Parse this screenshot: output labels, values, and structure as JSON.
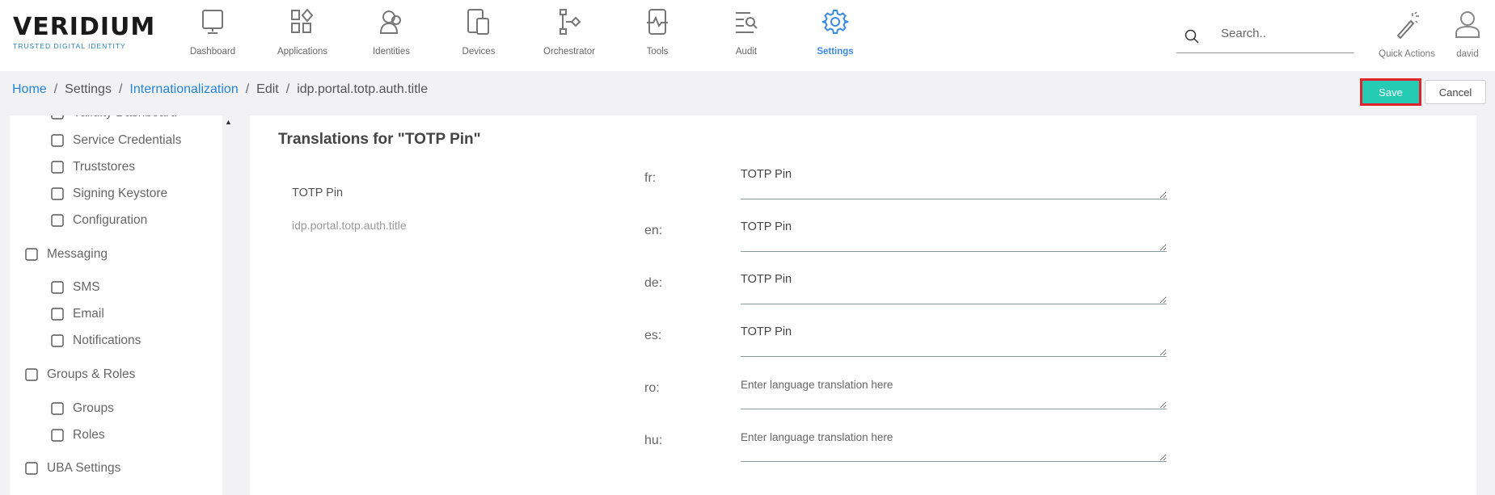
{
  "brand": {
    "name": "VERIDIUM",
    "tagline": "TRUSTED DIGITAL IDENTITY",
    "accent": "#3b8ae0"
  },
  "nav": [
    {
      "label": "Dashboard",
      "icon": "monitor-icon"
    },
    {
      "label": "Applications",
      "icon": "apps-icon"
    },
    {
      "label": "Identities",
      "icon": "users-icon"
    },
    {
      "label": "Devices",
      "icon": "devices-icon"
    },
    {
      "label": "Orchestrator",
      "icon": "flow-icon"
    },
    {
      "label": "Tools",
      "icon": "tools-icon"
    },
    {
      "label": "Audit",
      "icon": "audit-icon"
    },
    {
      "label": "Settings",
      "icon": "gear-icon",
      "active": true
    }
  ],
  "search": {
    "placeholder": "Search.."
  },
  "header_actions": {
    "quick_actions": "Quick Actions",
    "user": "david"
  },
  "breadcrumb": [
    "Home",
    "Settings",
    "Internationalization",
    "Edit",
    "idp.portal.totp.auth.title"
  ],
  "buttons": {
    "save": "Save",
    "cancel": "Cancel",
    "save_color": "#26cbb3"
  },
  "sidebar": [
    {
      "label": "Validity Dashboard",
      "type": "sub"
    },
    {
      "label": "Service Credentials",
      "type": "sub"
    },
    {
      "label": "Truststores",
      "type": "sub"
    },
    {
      "label": "Signing Keystore",
      "type": "sub"
    },
    {
      "label": "Configuration",
      "type": "sub"
    },
    {
      "label": "Messaging",
      "type": "sec"
    },
    {
      "label": "SMS",
      "type": "sub"
    },
    {
      "label": "Email",
      "type": "sub"
    },
    {
      "label": "Notifications",
      "type": "sub"
    },
    {
      "label": "Groups & Roles",
      "type": "sec"
    },
    {
      "label": "Groups",
      "type": "sub"
    },
    {
      "label": "Roles",
      "type": "sub"
    },
    {
      "label": "UBA Settings",
      "type": "sec"
    }
  ],
  "main": {
    "title": "Translations for \"TOTP Pin\"",
    "default_value": "TOTP Pin",
    "key": "idp.portal.totp.auth.title",
    "placeholder": "Enter language translation here",
    "translations": [
      {
        "lang": "fr:",
        "value": "TOTP Pin"
      },
      {
        "lang": "en:",
        "value": "TOTP Pin"
      },
      {
        "lang": "de:",
        "value": "TOTP Pin"
      },
      {
        "lang": "es:",
        "value": "TOTP Pin"
      },
      {
        "lang": "ro:",
        "value": ""
      },
      {
        "lang": "hu:",
        "value": ""
      }
    ]
  }
}
